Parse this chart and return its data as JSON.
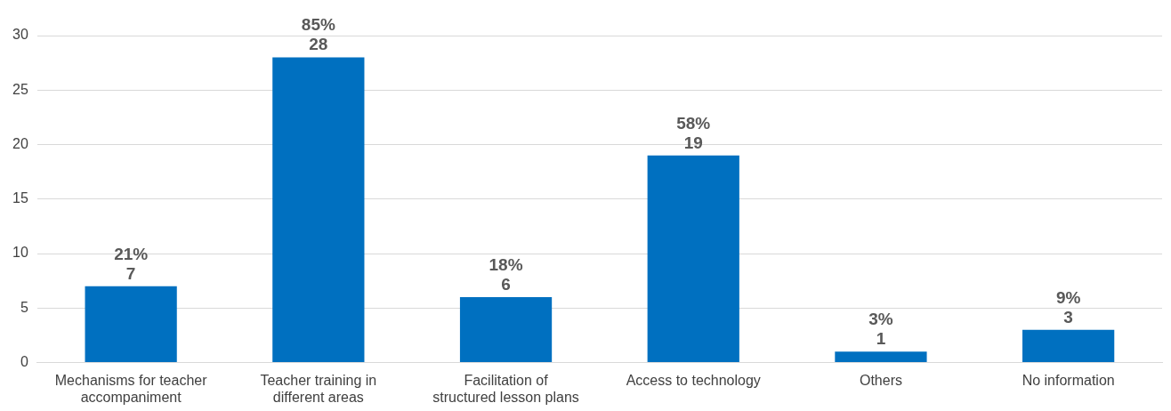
{
  "chart_data": {
    "type": "bar",
    "categories": [
      "Mechanisms for teacher accompaniment",
      "Teacher training in different areas",
      "Facilitation of structured lesson plans",
      "Access to technology",
      "Others",
      "No information"
    ],
    "values": [
      7,
      28,
      6,
      19,
      1,
      3
    ],
    "value_labels": [
      "21%\n7",
      "85%\n28",
      "18%\n6",
      "58%\n19",
      "3%\n1",
      "9%\n3"
    ],
    "color": "#0070c0",
    "ylim": [
      0,
      30
    ],
    "yticks": [
      0,
      5,
      10,
      15,
      20,
      25,
      30
    ],
    "grid": "y",
    "legend": false
  }
}
